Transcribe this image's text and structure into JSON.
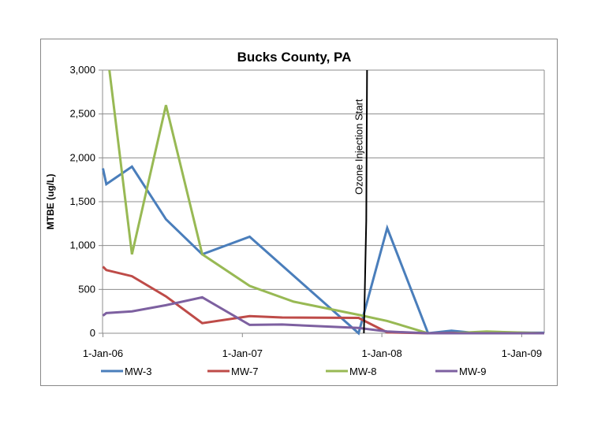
{
  "chart_data": {
    "type": "line",
    "title": "Bucks County, PA",
    "ylabel": "MTBE (ug/L)",
    "xlabel": "",
    "ylim": [
      0,
      3000
    ],
    "xlim": [
      "2005-12-31",
      "2009-03-01"
    ],
    "yticks": [
      {
        "value": 0,
        "label": "0"
      },
      {
        "value": 500,
        "label": "500"
      },
      {
        "value": 1000,
        "label": "1,000"
      },
      {
        "value": 1500,
        "label": "1,500"
      },
      {
        "value": 2000,
        "label": "2,000"
      },
      {
        "value": 2500,
        "label": "2,500"
      },
      {
        "value": 3000,
        "label": "3,000"
      }
    ],
    "xticks": [
      {
        "date": "2006-01-01",
        "label": "1-Jan-06"
      },
      {
        "date": "2007-01-01",
        "label": "1-Jan-07"
      },
      {
        "date": "2008-01-01",
        "label": "1-Jan-08"
      },
      {
        "date": "2009-01-01",
        "label": "1-Jan-09"
      }
    ],
    "grid": "horizontal",
    "legend_position": "bottom",
    "annotations": [
      {
        "text": "Ozone Injection Start",
        "date": "2007-11-15"
      }
    ],
    "series": [
      {
        "name": "MW-3",
        "color": "#4A7EBB",
        "points": [
          [
            "2006-01-01",
            1880
          ],
          [
            "2006-01-10",
            1700
          ],
          [
            "2006-03-18",
            1900
          ],
          [
            "2006-06-15",
            1300
          ],
          [
            "2006-09-18",
            900
          ],
          [
            "2007-01-20",
            1100
          ],
          [
            "2007-11-01",
            0
          ],
          [
            "2008-01-15",
            1200
          ],
          [
            "2008-05-01",
            0
          ],
          [
            "2008-07-01",
            30
          ],
          [
            "2008-08-15",
            10
          ],
          [
            "2009-03-01",
            5
          ]
        ]
      },
      {
        "name": "MW-7",
        "color": "#BE4B48",
        "points": [
          [
            "2006-01-01",
            760
          ],
          [
            "2006-01-10",
            720
          ],
          [
            "2006-03-18",
            650
          ],
          [
            "2006-06-15",
            420
          ],
          [
            "2006-09-18",
            115
          ],
          [
            "2007-01-20",
            195
          ],
          [
            "2007-04-15",
            180
          ],
          [
            "2007-11-01",
            175
          ],
          [
            "2008-01-15",
            10
          ],
          [
            "2008-05-01",
            0
          ],
          [
            "2008-08-15",
            5
          ],
          [
            "2009-03-01",
            0
          ]
        ]
      },
      {
        "name": "MW-8",
        "color": "#98B954",
        "points": [
          [
            "2006-01-18",
            3000
          ],
          [
            "2006-03-18",
            900
          ],
          [
            "2006-06-15",
            2600
          ],
          [
            "2006-09-18",
            900
          ],
          [
            "2007-01-20",
            540
          ],
          [
            "2007-05-15",
            360
          ],
          [
            "2007-11-01",
            210
          ],
          [
            "2008-01-15",
            140
          ],
          [
            "2008-05-01",
            0
          ],
          [
            "2008-07-01",
            0
          ],
          [
            "2008-10-01",
            20
          ],
          [
            "2009-03-01",
            0
          ]
        ]
      },
      {
        "name": "MW-9",
        "color": "#7D60A0",
        "points": [
          [
            "2006-01-01",
            200
          ],
          [
            "2006-01-10",
            230
          ],
          [
            "2006-03-18",
            250
          ],
          [
            "2006-06-15",
            320
          ],
          [
            "2006-09-18",
            410
          ],
          [
            "2007-01-20",
            95
          ],
          [
            "2007-04-15",
            100
          ],
          [
            "2007-11-01",
            60
          ],
          [
            "2008-01-15",
            20
          ],
          [
            "2008-05-01",
            0
          ],
          [
            "2009-03-01",
            0
          ]
        ]
      }
    ]
  }
}
